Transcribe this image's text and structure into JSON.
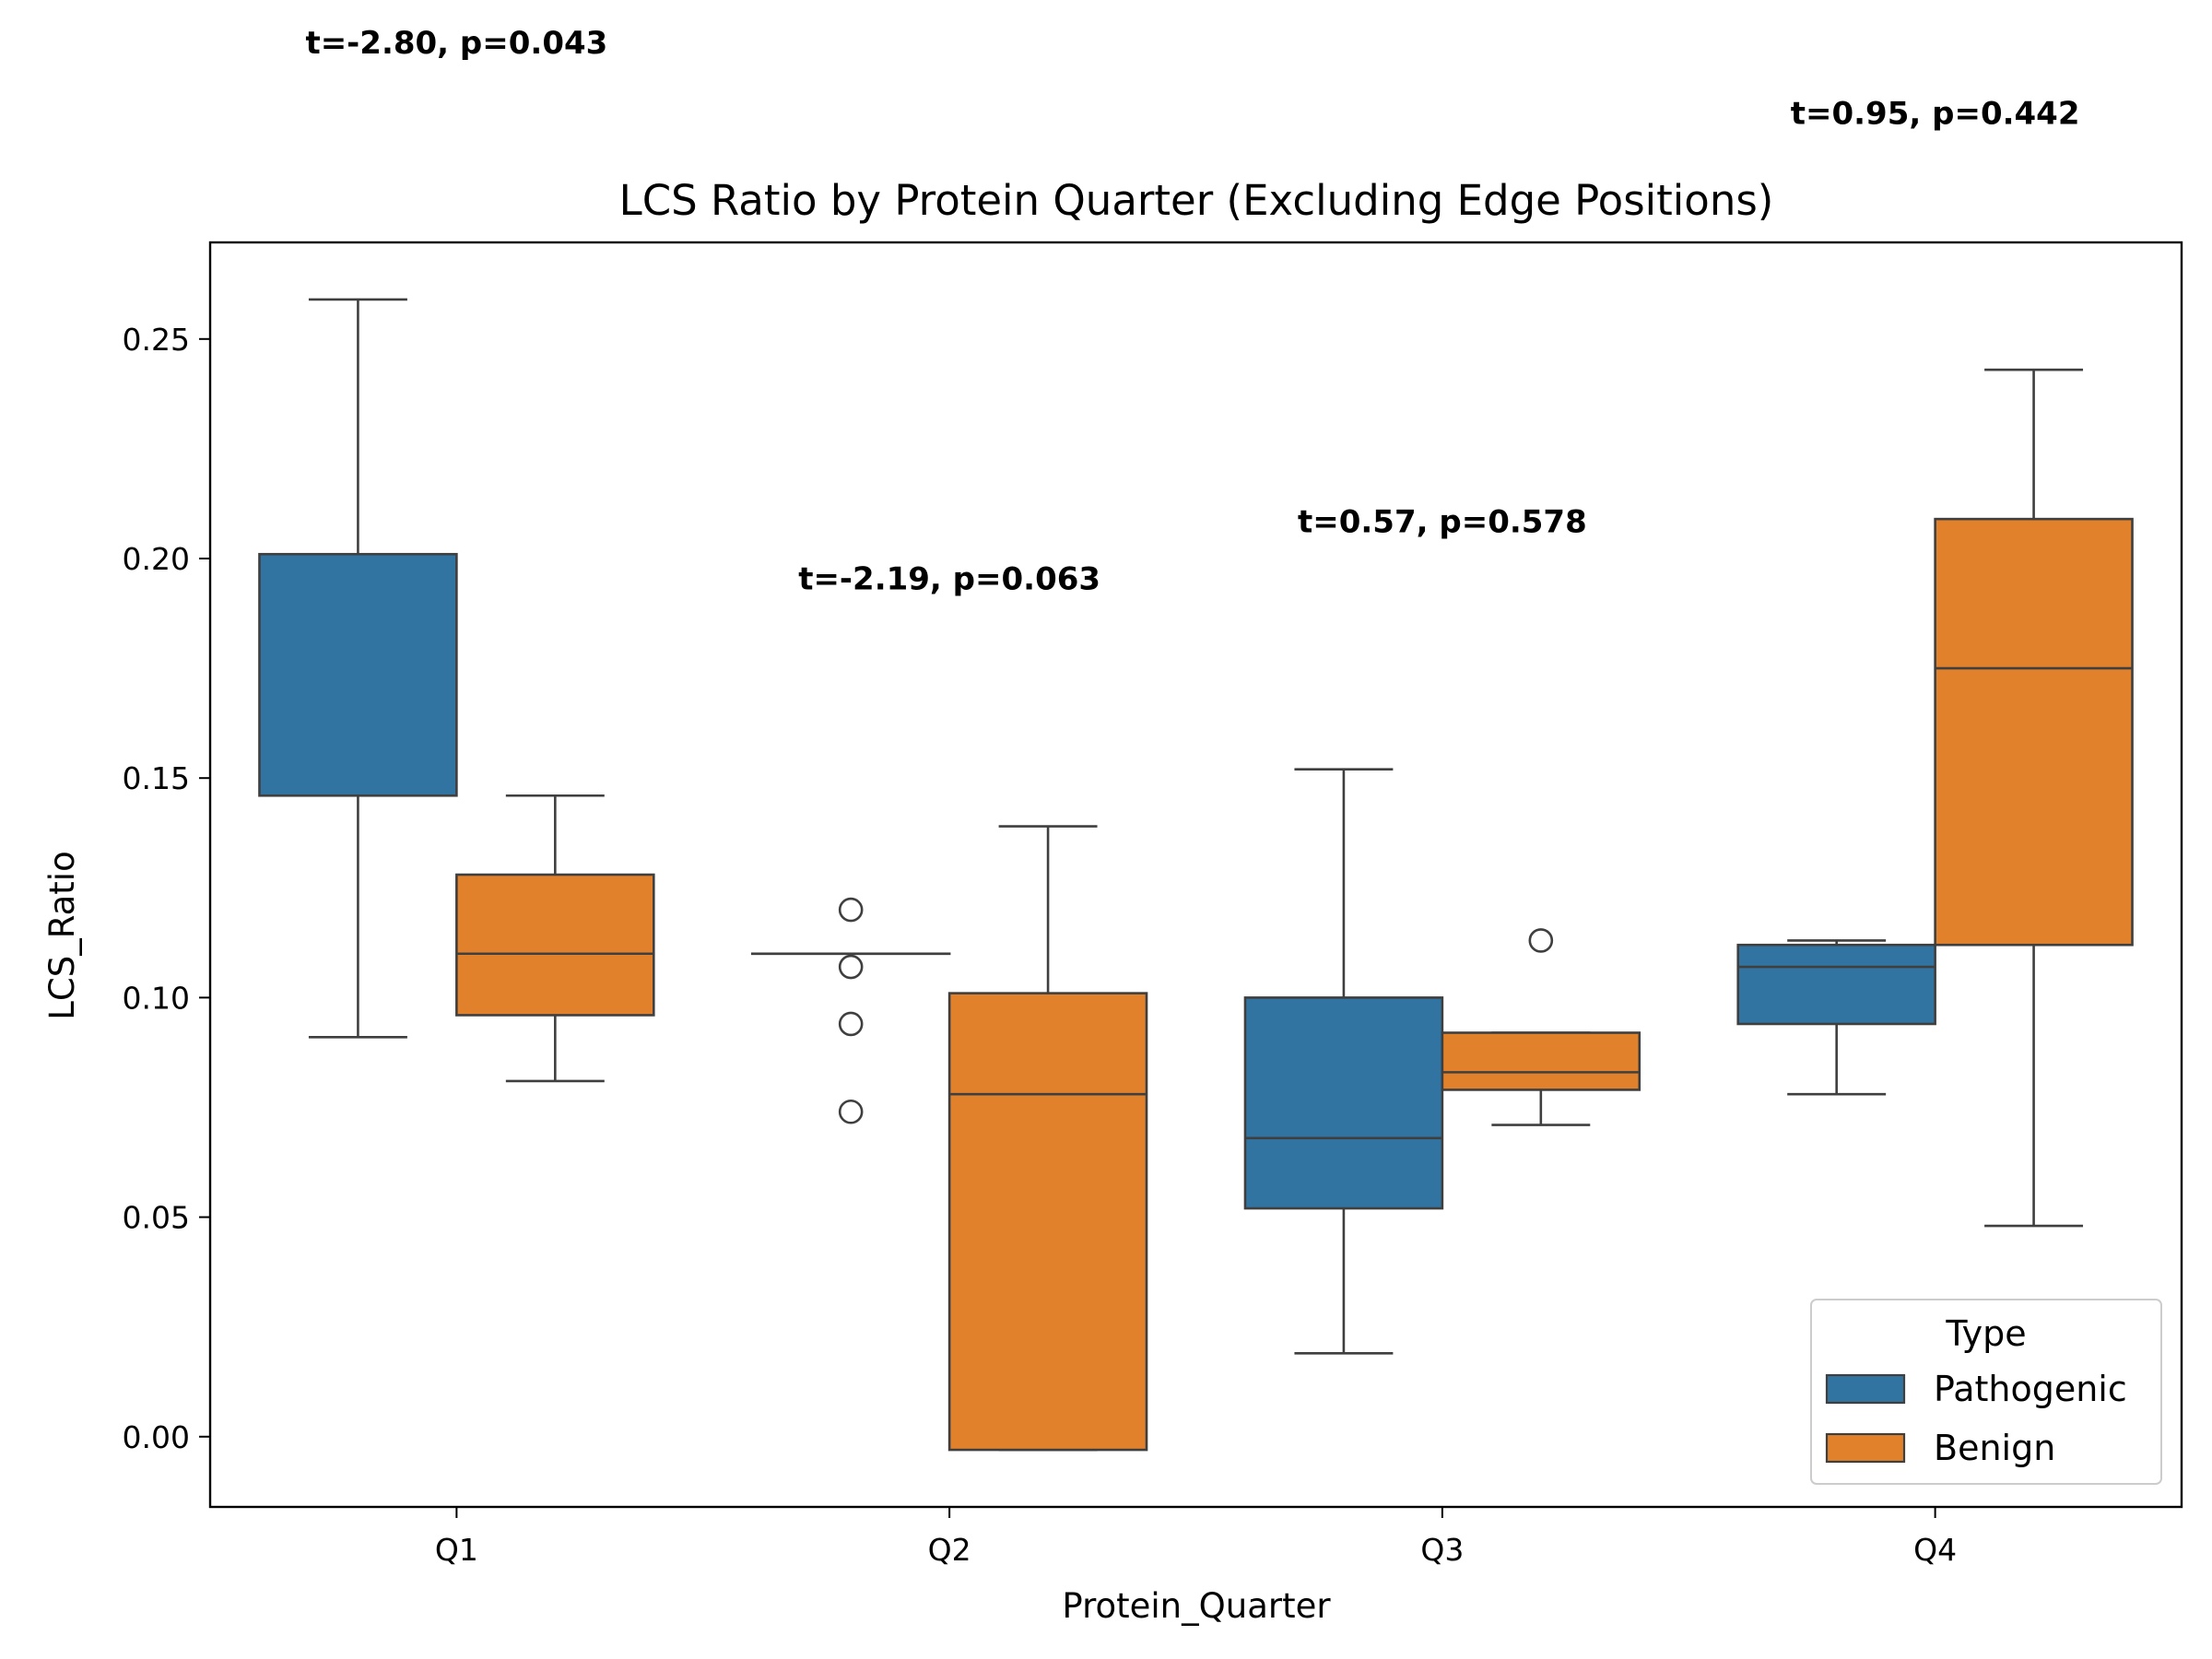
{
  "chart_data": {
    "type": "box",
    "title": "LCS Ratio by Protein Quarter (Excluding Edge Positions)",
    "xlabel": "Protein_Quarter",
    "ylabel": "LCS_Ratio",
    "categories": [
      "Q1",
      "Q2",
      "Q3",
      "Q4"
    ],
    "ylim": [
      -0.016,
      0.272
    ],
    "yticks": [
      0.0,
      0.05,
      0.1,
      0.15,
      0.2,
      0.25
    ],
    "ytick_labels": [
      "0.00",
      "0.05",
      "0.10",
      "0.15",
      "0.20",
      "0.25"
    ],
    "grid": false,
    "legend": {
      "title": "Type",
      "position": "lower-right"
    },
    "series": [
      {
        "name": "Pathogenic",
        "color": "#3274a1",
        "boxes": [
          {
            "category": "Q1",
            "whislo": 0.091,
            "q1": 0.146,
            "med": 0.146,
            "q3": 0.201,
            "whishi": 0.259,
            "fliers": []
          },
          {
            "category": "Q2",
            "whislo": 0.11,
            "q1": 0.11,
            "med": 0.11,
            "q3": 0.11,
            "whishi": 0.11,
            "fliers": [
              0.12,
              0.107,
              0.094,
              0.074
            ]
          },
          {
            "category": "Q3",
            "whislo": 0.019,
            "q1": 0.052,
            "med": 0.068,
            "q3": 0.1,
            "whishi": 0.152,
            "fliers": []
          },
          {
            "category": "Q4",
            "whislo": 0.078,
            "q1": 0.094,
            "med": 0.107,
            "q3": 0.112,
            "whishi": 0.113,
            "fliers": []
          }
        ]
      },
      {
        "name": "Benign",
        "color": "#e1812c",
        "boxes": [
          {
            "category": "Q1",
            "whislo": 0.081,
            "q1": 0.096,
            "med": 0.11,
            "q3": 0.128,
            "whishi": 0.146,
            "fliers": []
          },
          {
            "category": "Q2",
            "whislo": -0.003,
            "q1": -0.003,
            "med": 0.078,
            "q3": 0.101,
            "whishi": 0.139,
            "fliers": []
          },
          {
            "category": "Q3",
            "whislo": 0.071,
            "q1": 0.079,
            "med": 0.083,
            "q3": 0.092,
            "whishi": 0.092,
            "fliers": [
              0.113
            ]
          },
          {
            "category": "Q4",
            "whislo": 0.048,
            "q1": 0.112,
            "med": 0.175,
            "q3": 0.209,
            "whishi": 0.243,
            "fliers": []
          }
        ]
      }
    ],
    "annotations": [
      {
        "category": "Q1",
        "text": "t=-2.80, p=0.043",
        "y": 0.315
      },
      {
        "category": "Q2",
        "text": "t=-2.19, p=0.063",
        "y": 0.193
      },
      {
        "category": "Q3",
        "text": "t=0.57, p=0.578",
        "y": 0.206
      },
      {
        "category": "Q4",
        "text": "t=0.95, p=0.442",
        "y": 0.299
      }
    ]
  }
}
